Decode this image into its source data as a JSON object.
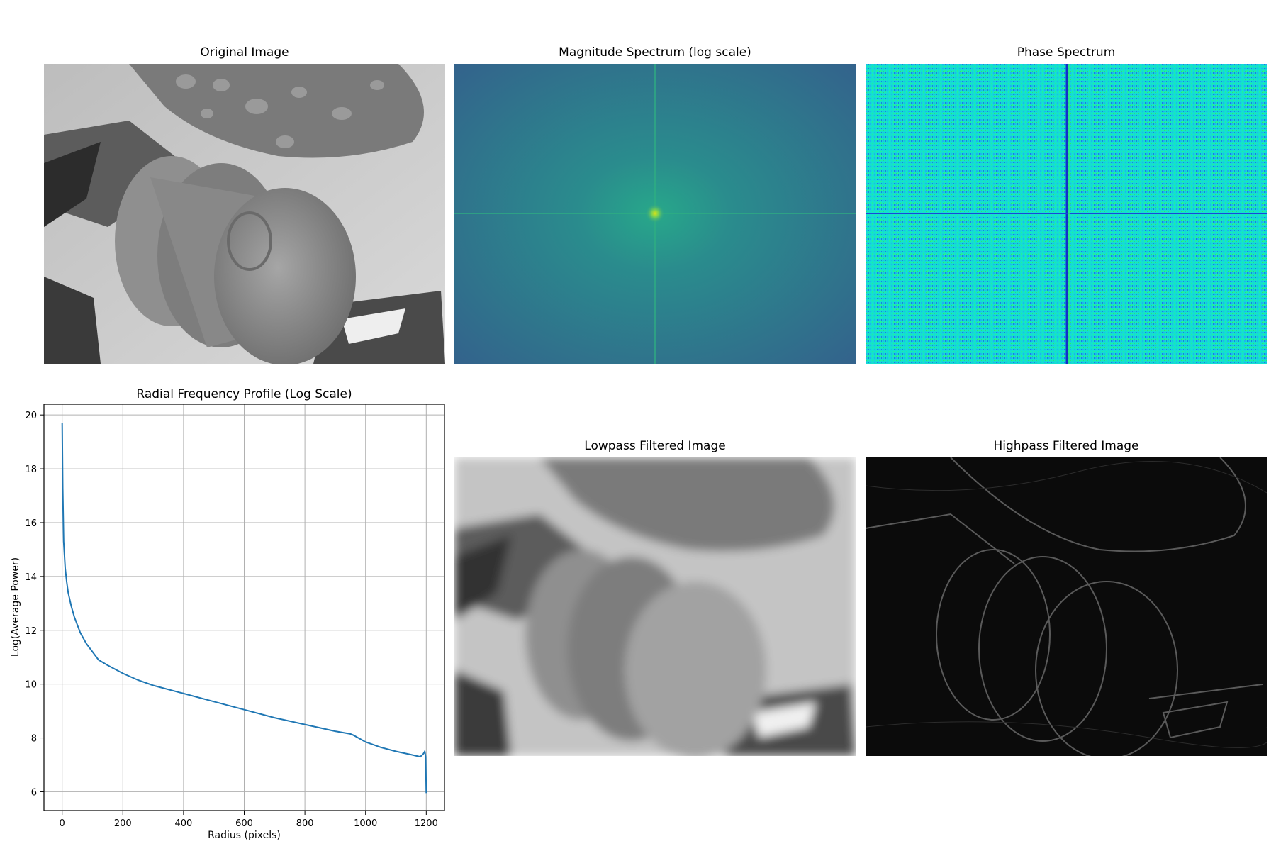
{
  "panels": {
    "original": {
      "title": "Original Image"
    },
    "magnitude": {
      "title": "Magnitude Spectrum (log scale)"
    },
    "phase": {
      "title": "Phase Spectrum"
    },
    "lowpass": {
      "title": "Lowpass Filtered Image"
    },
    "highpass": {
      "title": "Highpass Filtered Image"
    }
  },
  "colors": {
    "line": "#1f77b4",
    "magnitude_bg": "#2f6b8e",
    "magnitude_center": "#9ede3a",
    "phase_bg": "#12e0c8",
    "phase_line": "#1a2bd0"
  },
  "chart_data": {
    "type": "line",
    "title": "Radial Frequency Profile (Log Scale)",
    "xlabel": "Radius (pixels)",
    "ylabel": "Log(Average Power)",
    "xlim": [
      -60,
      1260
    ],
    "ylim": [
      5.3,
      20.4
    ],
    "xticks": [
      0,
      200,
      400,
      600,
      800,
      1000,
      1200
    ],
    "yticks": [
      6,
      8,
      10,
      12,
      14,
      16,
      18,
      20
    ],
    "grid": true,
    "series": [
      {
        "x": [
          0,
          2,
          5,
          10,
          15,
          20,
          30,
          40,
          50,
          60,
          80,
          100,
          120,
          150,
          200,
          250,
          300,
          400,
          500,
          600,
          700,
          800,
          900,
          950,
          960,
          1000,
          1050,
          1100,
          1150,
          1180,
          1190,
          1195,
          1198,
          1200
        ],
        "y": [
          19.7,
          17.3,
          15.3,
          14.3,
          13.8,
          13.4,
          12.9,
          12.5,
          12.2,
          11.9,
          11.5,
          11.2,
          10.9,
          10.7,
          10.4,
          10.15,
          9.95,
          9.65,
          9.35,
          9.05,
          8.75,
          8.5,
          8.25,
          8.15,
          8.1,
          7.85,
          7.65,
          7.5,
          7.38,
          7.3,
          7.4,
          7.5,
          7.3,
          5.95
        ]
      }
    ]
  }
}
